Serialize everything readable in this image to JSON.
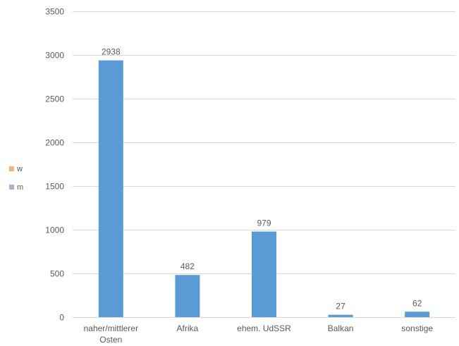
{
  "chart_data": {
    "type": "bar",
    "categories": [
      "naher/mittlerer Osten",
      "Afrika",
      "ehem. UdSSR",
      "Balkan",
      "sonstige"
    ],
    "series": [
      {
        "name": "w",
        "values": [
          0,
          0,
          0,
          0,
          0
        ],
        "color": "#f4b183"
      },
      {
        "name": "m",
        "values": [
          2938,
          482,
          979,
          27,
          62
        ],
        "color": "#5b9bd5"
      }
    ],
    "data_labels": [
      "2938",
      "482",
      "979",
      "27",
      "62"
    ],
    "ylim": [
      0,
      3500
    ],
    "yticks": [
      0,
      500,
      1000,
      1500,
      2000,
      2500,
      3000,
      3500
    ],
    "grid": true,
    "legend_position": "left",
    "legend_legacy_colors": {
      "w": "#f4b183",
      "m": "#a5b4cf"
    }
  }
}
